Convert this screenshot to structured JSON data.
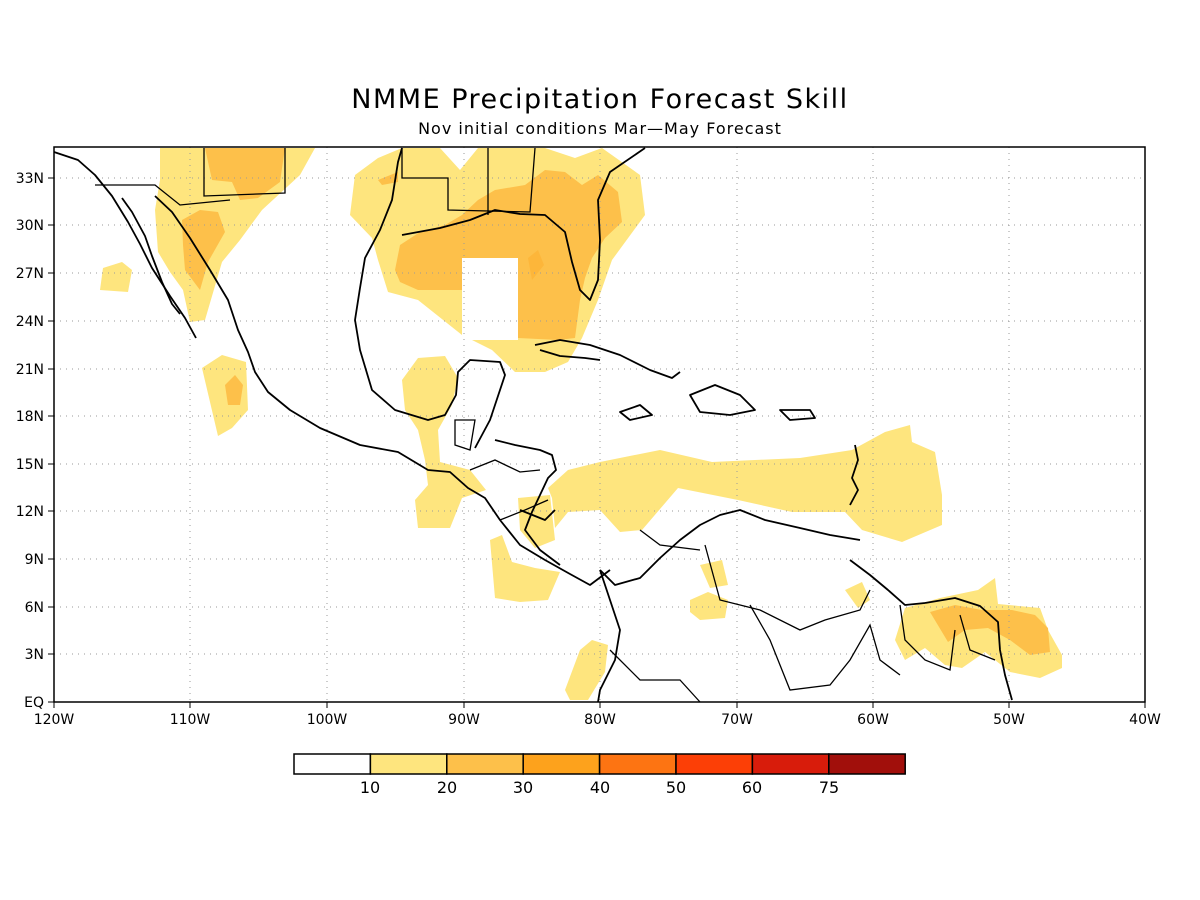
{
  "title": "NMME Precipitation Forecast Skill",
  "subtitle": "Nov initial conditions  Mar—May Forecast",
  "axes": {
    "lon_labels": [
      "120W",
      "110W",
      "100W",
      "90W",
      "80W",
      "70W",
      "60W",
      "50W",
      "40W"
    ],
    "lat_labels": [
      "EQ",
      "3N",
      "6N",
      "9N",
      "12N",
      "15N",
      "18N",
      "21N",
      "24N",
      "27N",
      "30N",
      "33N"
    ]
  },
  "colorbar": {
    "labels": [
      "10",
      "20",
      "30",
      "40",
      "50",
      "60",
      "75"
    ],
    "colors": [
      "#ffffff",
      "#fee57e",
      "#fdc04a",
      "#fda21c",
      "#fd7412",
      "#fc3f06",
      "#d81c0b",
      "#a10f0b"
    ]
  }
}
